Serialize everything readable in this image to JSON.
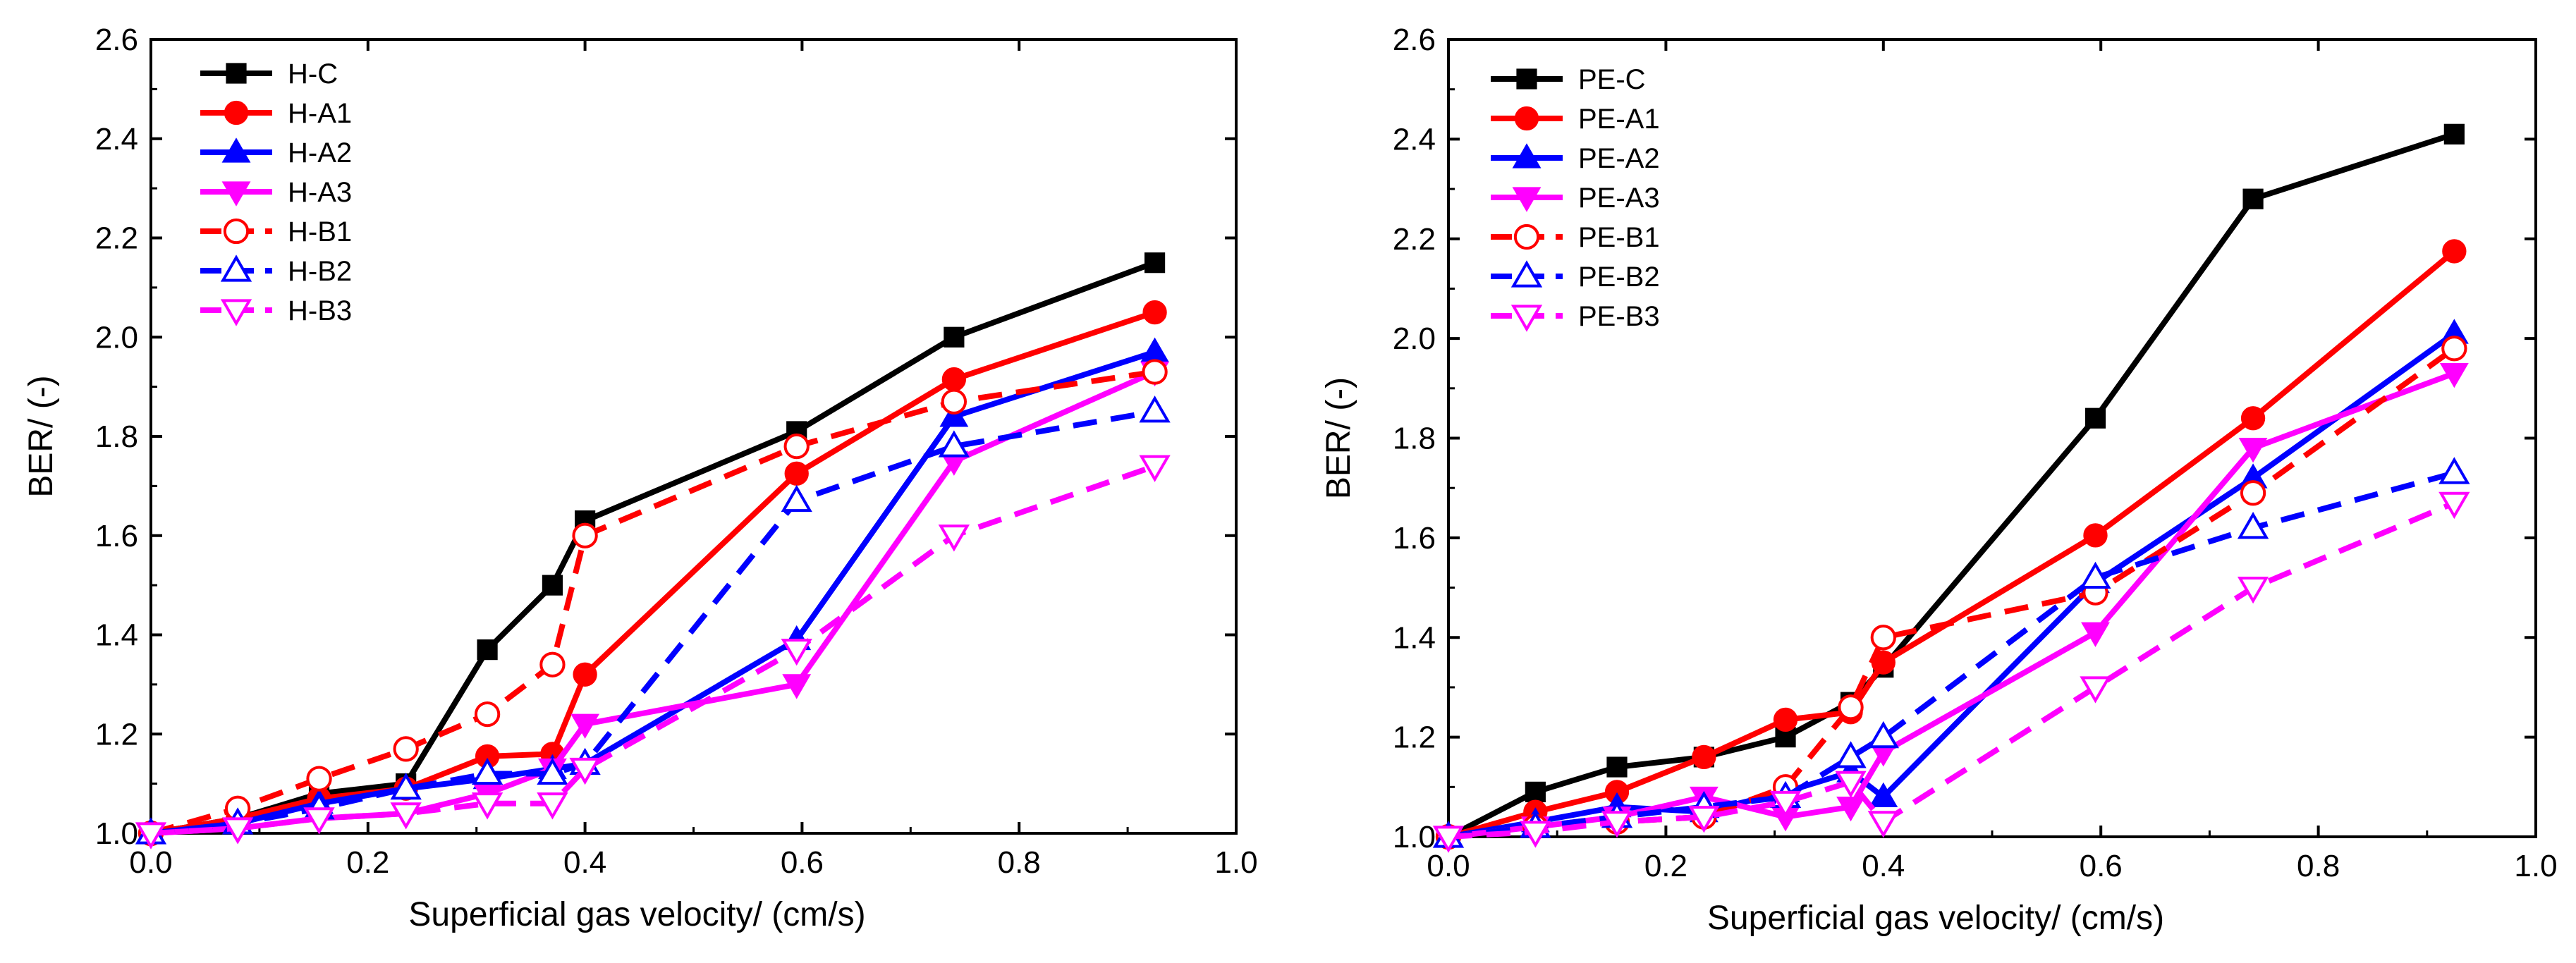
{
  "chart_data": [
    {
      "type": "line",
      "xlabel": "Superficial gas velocity/ (cm/s)",
      "ylabel": "BER/ (-)",
      "xlim": [
        0.0,
        1.0
      ],
      "ylim": [
        1.0,
        2.6
      ],
      "xticks": [
        "0.0",
        "0.2",
        "0.4",
        "0.6",
        "0.8",
        "1.0"
      ],
      "yticks": [
        "1.0",
        "1.2",
        "1.4",
        "1.6",
        "1.8",
        "2.0",
        "2.2",
        "2.4",
        "2.6"
      ],
      "legend_position": "top-left",
      "series": [
        {
          "name": "H-C",
          "color": "#000000",
          "style": "solid",
          "marker": "square-filled",
          "x": [
            0.0,
            0.08,
            0.155,
            0.235,
            0.31,
            0.37,
            0.4,
            0.595,
            0.74,
            0.925
          ],
          "y": [
            1.0,
            1.03,
            1.08,
            1.1,
            1.37,
            1.5,
            1.63,
            1.81,
            2.0,
            2.15
          ]
        },
        {
          "name": "H-A1",
          "color": "#ff0000",
          "style": "solid",
          "marker": "circle-filled",
          "x": [
            0.0,
            0.08,
            0.155,
            0.235,
            0.31,
            0.37,
            0.4,
            0.595,
            0.74,
            0.925
          ],
          "y": [
            1.0,
            1.03,
            1.07,
            1.09,
            1.155,
            1.16,
            1.32,
            1.725,
            1.915,
            2.05
          ]
        },
        {
          "name": "H-A2",
          "color": "#0000ff",
          "style": "solid",
          "marker": "triangle-up-filled",
          "x": [
            0.0,
            0.08,
            0.155,
            0.235,
            0.31,
            0.37,
            0.4,
            0.595,
            0.74,
            0.925
          ],
          "y": [
            1.0,
            1.02,
            1.06,
            1.09,
            1.11,
            1.13,
            1.14,
            1.39,
            1.84,
            1.97
          ]
        },
        {
          "name": "H-A3",
          "color": "#ff00ff",
          "style": "solid",
          "marker": "triangle-down-filled",
          "x": [
            0.0,
            0.08,
            0.155,
            0.235,
            0.31,
            0.37,
            0.4,
            0.595,
            0.74,
            0.925
          ],
          "y": [
            1.0,
            1.01,
            1.03,
            1.04,
            1.08,
            1.13,
            1.22,
            1.3,
            1.75,
            1.93
          ]
        },
        {
          "name": "H-B1",
          "color": "#ff0000",
          "style": "dashed",
          "marker": "circle-open",
          "x": [
            0.0,
            0.08,
            0.155,
            0.235,
            0.31,
            0.37,
            0.4,
            0.595,
            0.74,
            0.925
          ],
          "y": [
            1.0,
            1.05,
            1.11,
            1.17,
            1.24,
            1.34,
            1.6,
            1.78,
            1.87,
            1.93
          ]
        },
        {
          "name": "H-B2",
          "color": "#0000ff",
          "style": "dashed",
          "marker": "triangle-up-open",
          "x": [
            0.0,
            0.08,
            0.155,
            0.235,
            0.31,
            0.37,
            0.4,
            0.595,
            0.74,
            0.925
          ],
          "y": [
            1.0,
            1.02,
            1.05,
            1.09,
            1.12,
            1.12,
            1.14,
            1.67,
            1.78,
            1.85
          ]
        },
        {
          "name": "H-B3",
          "color": "#ff00ff",
          "style": "dashed",
          "marker": "triangle-down-open",
          "x": [
            0.0,
            0.08,
            0.155,
            0.235,
            0.31,
            0.37,
            0.4,
            0.595,
            0.74,
            0.925
          ],
          "y": [
            1.0,
            1.01,
            1.03,
            1.04,
            1.06,
            1.06,
            1.13,
            1.37,
            1.6,
            1.74
          ]
        }
      ]
    },
    {
      "type": "line",
      "xlabel": "Superficial gas velocity/ (cm/s)",
      "ylabel": "BER/ (-)",
      "xlim": [
        0.0,
        1.0
      ],
      "ylim": [
        1.0,
        2.6
      ],
      "xticks": [
        "0.0",
        "0.2",
        "0.4",
        "0.6",
        "0.8",
        "1.0"
      ],
      "yticks": [
        "1.0",
        "1.2",
        "1.4",
        "1.6",
        "1.8",
        "2.0",
        "2.2",
        "2.4",
        "2.6"
      ],
      "legend_position": "top-left",
      "series": [
        {
          "name": "PE-C",
          "color": "#000000",
          "style": "solid",
          "marker": "square-filled",
          "x": [
            0.0,
            0.08,
            0.155,
            0.235,
            0.31,
            0.37,
            0.4,
            0.595,
            0.74,
            0.925
          ],
          "y": [
            1.0,
            1.09,
            1.14,
            1.16,
            1.2,
            1.27,
            1.34,
            1.84,
            2.28,
            2.41
          ]
        },
        {
          "name": "PE-A1",
          "color": "#ff0000",
          "style": "solid",
          "marker": "circle-filled",
          "x": [
            0.0,
            0.08,
            0.155,
            0.235,
            0.31,
            0.37,
            0.4,
            0.595,
            0.74,
            0.925
          ],
          "y": [
            1.0,
            1.05,
            1.09,
            1.16,
            1.235,
            1.25,
            1.35,
            1.605,
            1.84,
            2.175
          ]
        },
        {
          "name": "PE-A2",
          "color": "#0000ff",
          "style": "solid",
          "marker": "triangle-up-filled",
          "x": [
            0.0,
            0.08,
            0.155,
            0.235,
            0.31,
            0.37,
            0.4,
            0.595,
            0.74,
            0.925
          ],
          "y": [
            1.0,
            1.03,
            1.06,
            1.05,
            1.09,
            1.13,
            1.08,
            1.51,
            1.72,
            2.01
          ]
        },
        {
          "name": "PE-A3",
          "color": "#ff00ff",
          "style": "solid",
          "marker": "triangle-down-filled",
          "x": [
            0.0,
            0.08,
            0.155,
            0.235,
            0.31,
            0.37,
            0.4,
            0.595,
            0.74,
            0.925
          ],
          "y": [
            1.0,
            1.02,
            1.04,
            1.08,
            1.04,
            1.06,
            1.17,
            1.41,
            1.78,
            1.93
          ]
        },
        {
          "name": "PE-B1",
          "color": "#ff0000",
          "style": "dashed",
          "marker": "circle-open",
          "x": [
            0.0,
            0.08,
            0.155,
            0.235,
            0.31,
            0.37,
            0.4,
            0.595,
            0.74,
            0.925
          ],
          "y": [
            1.0,
            1.02,
            1.03,
            1.04,
            1.1,
            1.26,
            1.4,
            1.49,
            1.69,
            1.98
          ]
        },
        {
          "name": "PE-B2",
          "color": "#0000ff",
          "style": "dashed",
          "marker": "triangle-up-open",
          "x": [
            0.0,
            0.08,
            0.155,
            0.235,
            0.31,
            0.37,
            0.4,
            0.595,
            0.74,
            0.925
          ],
          "y": [
            1.0,
            1.02,
            1.04,
            1.06,
            1.08,
            1.16,
            1.2,
            1.52,
            1.62,
            1.73
          ]
        },
        {
          "name": "PE-B3",
          "color": "#ff00ff",
          "style": "dashed",
          "marker": "triangle-down-open",
          "x": [
            0.0,
            0.08,
            0.155,
            0.235,
            0.31,
            0.37,
            0.4,
            0.595,
            0.74,
            0.925
          ],
          "y": [
            1.0,
            1.01,
            1.03,
            1.04,
            1.07,
            1.11,
            1.03,
            1.3,
            1.5,
            1.67
          ]
        }
      ]
    }
  ]
}
